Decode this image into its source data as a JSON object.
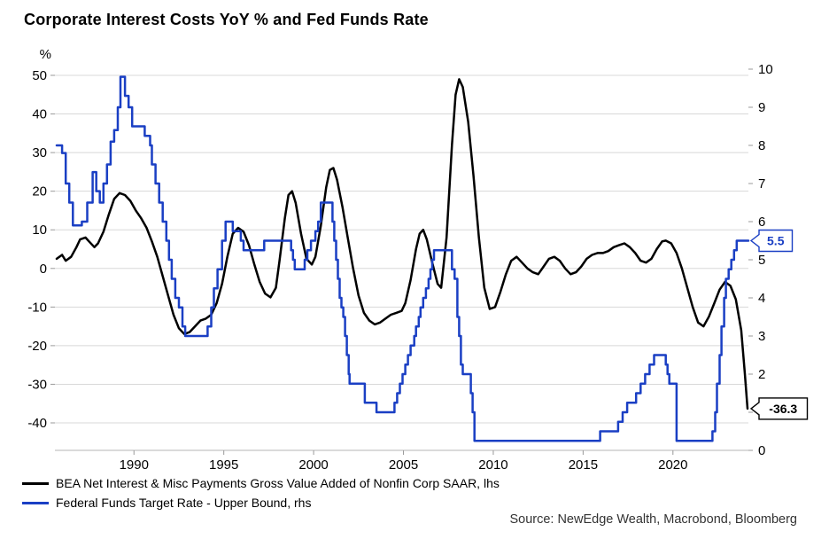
{
  "source": "Source: NewEdge Wealth, Macrobond, Bloomberg",
  "chart_data": {
    "type": "line",
    "title": "Corporate Interest Costs YoY % and Fed Funds Rate",
    "x_range": [
      1985.6,
      2024.2
    ],
    "x_ticks": [
      1990,
      1995,
      2000,
      2005,
      2010,
      2015,
      2020
    ],
    "grid": "horizontal",
    "legend_position": "bottom-left",
    "left_axis": {
      "unit_label": "%",
      "min": -40,
      "max": 50,
      "ticks": [
        50,
        40,
        30,
        20,
        10,
        0,
        -10,
        -20,
        -30,
        -40
      ]
    },
    "right_axis": {
      "min": 0,
      "max": 10,
      "ticks": [
        10,
        9,
        8,
        7,
        6,
        5,
        4,
        3,
        2,
        1,
        0
      ]
    },
    "series": [
      {
        "id": "bea-net-interest",
        "name": "BEA Net Interest & Misc Payments Gross Value Added of Nonfin Corp SAAR, lhs",
        "axis": "left",
        "style": "line",
        "color": "#000000",
        "points": [
          [
            1985.7,
            2.5
          ],
          [
            1986,
            3.5
          ],
          [
            1986.2,
            2
          ],
          [
            1986.5,
            3
          ],
          [
            1986.8,
            5.5
          ],
          [
            1987,
            7.5
          ],
          [
            1987.3,
            8
          ],
          [
            1987.5,
            7
          ],
          [
            1987.8,
            5.5
          ],
          [
            1988,
            6.5
          ],
          [
            1988.3,
            9.5
          ],
          [
            1988.6,
            14
          ],
          [
            1988.9,
            18
          ],
          [
            1989.2,
            19.5
          ],
          [
            1989.5,
            19
          ],
          [
            1989.8,
            17.5
          ],
          [
            1990.1,
            15
          ],
          [
            1990.4,
            13
          ],
          [
            1990.7,
            10.5
          ],
          [
            1991,
            7
          ],
          [
            1991.3,
            3
          ],
          [
            1991.6,
            -2
          ],
          [
            1991.9,
            -7
          ],
          [
            1992.2,
            -12
          ],
          [
            1992.5,
            -15.5
          ],
          [
            1992.8,
            -17
          ],
          [
            1993.1,
            -16.5
          ],
          [
            1993.4,
            -15
          ],
          [
            1993.7,
            -13.5
          ],
          [
            1994,
            -13
          ],
          [
            1994.3,
            -12
          ],
          [
            1994.6,
            -9
          ],
          [
            1994.9,
            -4
          ],
          [
            1995.2,
            3
          ],
          [
            1995.5,
            9
          ],
          [
            1995.8,
            10.5
          ],
          [
            1996.1,
            9.5
          ],
          [
            1996.4,
            6
          ],
          [
            1996.7,
            1
          ],
          [
            1997,
            -3.5
          ],
          [
            1997.3,
            -6.5
          ],
          [
            1997.6,
            -7.5
          ],
          [
            1997.9,
            -5
          ],
          [
            1998.1,
            2
          ],
          [
            1998.4,
            13
          ],
          [
            1998.6,
            19
          ],
          [
            1998.8,
            20
          ],
          [
            1999,
            17
          ],
          [
            1999.3,
            9
          ],
          [
            1999.6,
            2.5
          ],
          [
            1999.9,
            1
          ],
          [
            2000.1,
            3
          ],
          [
            2000.4,
            11
          ],
          [
            2000.7,
            21
          ],
          [
            2000.9,
            25.5
          ],
          [
            2001.1,
            26
          ],
          [
            2001.3,
            23
          ],
          [
            2001.6,
            16
          ],
          [
            2001.9,
            8
          ],
          [
            2002.2,
            0
          ],
          [
            2002.5,
            -7
          ],
          [
            2002.8,
            -11.5
          ],
          [
            2003.1,
            -13.5
          ],
          [
            2003.4,
            -14.5
          ],
          [
            2003.7,
            -14
          ],
          [
            2004,
            -13
          ],
          [
            2004.3,
            -12
          ],
          [
            2004.6,
            -11.5
          ],
          [
            2004.9,
            -11
          ],
          [
            2005.1,
            -9
          ],
          [
            2005.4,
            -3
          ],
          [
            2005.7,
            5
          ],
          [
            2005.9,
            9
          ],
          [
            2006.1,
            10
          ],
          [
            2006.3,
            7.5
          ],
          [
            2006.6,
            1.5
          ],
          [
            2006.9,
            -4
          ],
          [
            2007.1,
            -5
          ],
          [
            2007.4,
            8
          ],
          [
            2007.7,
            32
          ],
          [
            2007.9,
            45
          ],
          [
            2008.1,
            49
          ],
          [
            2008.3,
            47
          ],
          [
            2008.6,
            38
          ],
          [
            2008.9,
            24
          ],
          [
            2009.2,
            8
          ],
          [
            2009.5,
            -5
          ],
          [
            2009.8,
            -10.5
          ],
          [
            2010.1,
            -10
          ],
          [
            2010.4,
            -6
          ],
          [
            2010.7,
            -1.5
          ],
          [
            2011,
            2
          ],
          [
            2011.3,
            3
          ],
          [
            2011.6,
            1.5
          ],
          [
            2011.9,
            0
          ],
          [
            2012.2,
            -1
          ],
          [
            2012.5,
            -1.5
          ],
          [
            2012.8,
            0.5
          ],
          [
            2013.1,
            2.5
          ],
          [
            2013.4,
            3
          ],
          [
            2013.7,
            2
          ],
          [
            2014,
            0
          ],
          [
            2014.3,
            -1.5
          ],
          [
            2014.6,
            -1
          ],
          [
            2014.9,
            0.5
          ],
          [
            2015.2,
            2.5
          ],
          [
            2015.5,
            3.5
          ],
          [
            2015.8,
            4
          ],
          [
            2016.1,
            4
          ],
          [
            2016.4,
            4.5
          ],
          [
            2016.7,
            5.5
          ],
          [
            2017,
            6
          ],
          [
            2017.3,
            6.5
          ],
          [
            2017.6,
            5.5
          ],
          [
            2017.9,
            4
          ],
          [
            2018.2,
            2
          ],
          [
            2018.5,
            1.5
          ],
          [
            2018.8,
            2.5
          ],
          [
            2019.1,
            5
          ],
          [
            2019.4,
            7
          ],
          [
            2019.6,
            7.2
          ],
          [
            2019.9,
            6.5
          ],
          [
            2020.2,
            4
          ],
          [
            2020.5,
            0
          ],
          [
            2020.8,
            -5
          ],
          [
            2021.1,
            -10
          ],
          [
            2021.4,
            -14
          ],
          [
            2021.7,
            -15
          ],
          [
            2022,
            -12.5
          ],
          [
            2022.3,
            -9
          ],
          [
            2022.6,
            -5.5
          ],
          [
            2022.9,
            -3.5
          ],
          [
            2023.2,
            -4.5
          ],
          [
            2023.5,
            -8
          ],
          [
            2023.8,
            -16
          ],
          [
            2024,
            -27
          ],
          [
            2024.15,
            -36.3
          ]
        ]
      },
      {
        "id": "fed-funds-target",
        "name": "Federal Funds Target Rate - Upper Bound, rhs",
        "axis": "right",
        "style": "step",
        "color": "#1a3fc4",
        "points": [
          [
            1985.7,
            8
          ],
          [
            1986,
            7.8
          ],
          [
            1986.2,
            7
          ],
          [
            1986.4,
            6.5
          ],
          [
            1986.6,
            5.9
          ],
          [
            1987.1,
            6
          ],
          [
            1987.4,
            6.5
          ],
          [
            1987.7,
            7.3
          ],
          [
            1987.9,
            6.8
          ],
          [
            1988.1,
            6.5
          ],
          [
            1988.3,
            7
          ],
          [
            1988.5,
            7.5
          ],
          [
            1988.7,
            8.1
          ],
          [
            1988.9,
            8.4
          ],
          [
            1989.1,
            9
          ],
          [
            1989.25,
            9.8
          ],
          [
            1989.5,
            9.3
          ],
          [
            1989.7,
            9
          ],
          [
            1989.9,
            8.5
          ],
          [
            1990.6,
            8.25
          ],
          [
            1990.9,
            8
          ],
          [
            1991,
            7.5
          ],
          [
            1991.2,
            7
          ],
          [
            1991.4,
            6.5
          ],
          [
            1991.6,
            6
          ],
          [
            1991.8,
            5.5
          ],
          [
            1991.95,
            5
          ],
          [
            1992.1,
            4.5
          ],
          [
            1992.3,
            4
          ],
          [
            1992.5,
            3.75
          ],
          [
            1992.7,
            3.25
          ],
          [
            1992.85,
            3
          ],
          [
            1994.1,
            3.25
          ],
          [
            1994.3,
            3.75
          ],
          [
            1994.45,
            4.25
          ],
          [
            1994.65,
            4.75
          ],
          [
            1994.9,
            5.5
          ],
          [
            1995.1,
            6
          ],
          [
            1995.5,
            5.75
          ],
          [
            1995.95,
            5.5
          ],
          [
            1996.1,
            5.25
          ],
          [
            1997.25,
            5.5
          ],
          [
            1998.75,
            5.25
          ],
          [
            1998.85,
            5
          ],
          [
            1998.95,
            4.75
          ],
          [
            1999.5,
            5
          ],
          [
            1999.65,
            5.25
          ],
          [
            1999.85,
            5.5
          ],
          [
            2000.1,
            5.75
          ],
          [
            2000.25,
            6
          ],
          [
            2000.4,
            6.5
          ],
          [
            2001.05,
            6
          ],
          [
            2001.15,
            5.5
          ],
          [
            2001.25,
            5
          ],
          [
            2001.35,
            4.5
          ],
          [
            2001.45,
            4
          ],
          [
            2001.55,
            3.75
          ],
          [
            2001.65,
            3.5
          ],
          [
            2001.75,
            3
          ],
          [
            2001.85,
            2.5
          ],
          [
            2001.95,
            2
          ],
          [
            2002,
            1.75
          ],
          [
            2002.85,
            1.25
          ],
          [
            2003.5,
            1
          ],
          [
            2004.5,
            1.25
          ],
          [
            2004.65,
            1.5
          ],
          [
            2004.8,
            1.75
          ],
          [
            2004.95,
            2
          ],
          [
            2005.1,
            2.25
          ],
          [
            2005.25,
            2.5
          ],
          [
            2005.4,
            2.75
          ],
          [
            2005.6,
            3
          ],
          [
            2005.7,
            3.25
          ],
          [
            2005.85,
            3.5
          ],
          [
            2005.95,
            3.75
          ],
          [
            2006.1,
            4
          ],
          [
            2006.25,
            4.25
          ],
          [
            2006.4,
            4.5
          ],
          [
            2006.5,
            4.75
          ],
          [
            2006.6,
            5
          ],
          [
            2006.7,
            5.25
          ],
          [
            2007.7,
            4.75
          ],
          [
            2007.85,
            4.5
          ],
          [
            2008,
            3.5
          ],
          [
            2008.1,
            3
          ],
          [
            2008.2,
            2.25
          ],
          [
            2008.3,
            2
          ],
          [
            2008.75,
            1.5
          ],
          [
            2008.85,
            1
          ],
          [
            2008.95,
            0.25
          ],
          [
            2015.95,
            0.5
          ],
          [
            2016.95,
            0.75
          ],
          [
            2017.2,
            1
          ],
          [
            2017.45,
            1.25
          ],
          [
            2017.95,
            1.5
          ],
          [
            2018.2,
            1.75
          ],
          [
            2018.45,
            2
          ],
          [
            2018.7,
            2.25
          ],
          [
            2018.95,
            2.5
          ],
          [
            2019.6,
            2.25
          ],
          [
            2019.7,
            2
          ],
          [
            2019.8,
            1.75
          ],
          [
            2020.2,
            0.25
          ],
          [
            2022.2,
            0.5
          ],
          [
            2022.35,
            1
          ],
          [
            2022.45,
            1.75
          ],
          [
            2022.6,
            2.5
          ],
          [
            2022.7,
            3.25
          ],
          [
            2022.85,
            4
          ],
          [
            2022.95,
            4.5
          ],
          [
            2023.1,
            4.75
          ],
          [
            2023.25,
            5
          ],
          [
            2023.4,
            5.25
          ],
          [
            2023.55,
            5.5
          ]
        ]
      }
    ],
    "callouts": [
      {
        "label": "5.5",
        "axis": "right",
        "value": 5.5,
        "color": "#1a3fc4"
      },
      {
        "label": "-36.3",
        "axis": "left",
        "value": -36.3,
        "color": "#000000"
      }
    ]
  }
}
